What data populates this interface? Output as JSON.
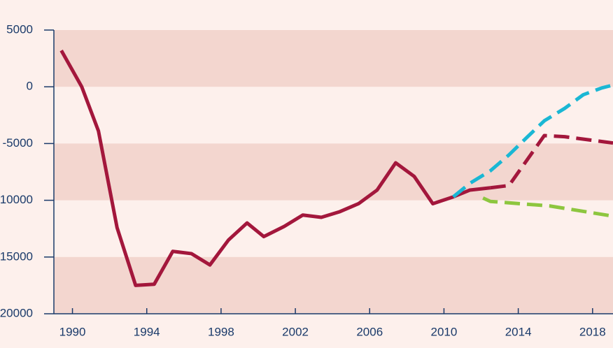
{
  "chart_data": {
    "type": "line",
    "xlim": [
      1989,
      2019.1
    ],
    "ylim": [
      -20000,
      5000
    ],
    "xticks": [
      1990,
      1994,
      1998,
      2002,
      2006,
      2010,
      2014,
      2018
    ],
    "yticks": [
      -20000,
      -15000,
      -10000,
      -5000,
      0,
      5000
    ],
    "grid": true,
    "series": [
      {
        "color": "#a3173c",
        "dashed": false,
        "x": [
          1989.4,
          1990.5,
          1991.4,
          1992.4,
          1993.4,
          1994.4,
          1995.4,
          1996.4,
          1997.4,
          1998.4,
          1999.4,
          2000.3,
          2001.4,
          2002.4,
          2003.4,
          2004.4,
          2005.4,
          2006.4,
          2007.4,
          2008.4,
          2009.4,
          2010.5,
          2011.4,
          2012.5
        ],
        "values": [
          3200,
          0,
          -3900,
          -12400,
          -17500,
          -17400,
          -14500,
          -14700,
          -15700,
          -13500,
          -12000,
          -13200,
          -12300,
          -11300,
          -11500,
          -11000,
          -10300,
          -9100,
          -6700,
          -7900,
          -10300,
          -9700,
          -9100,
          -8900
        ]
      },
      {
        "color": "#a3173c",
        "dashed": true,
        "x": [
          2012.5,
          2013.5,
          2015.4,
          2016.5,
          2019.1
        ],
        "values": [
          -8900,
          -8700,
          -4300,
          -4400,
          -4950
        ]
      },
      {
        "color": "#1ab7d4",
        "dashed": true,
        "x": [
          2010.5,
          2011.4,
          2012.5,
          2013.5,
          2014.5,
          2015.4,
          2016.5,
          2017.5,
          2018.5,
          2019.1
        ],
        "values": [
          -9700,
          -8500,
          -7400,
          -6000,
          -4400,
          -3000,
          -1900,
          -700,
          -100,
          150
        ]
      },
      {
        "color": "#8dc63f",
        "dashed": true,
        "x": [
          2012.1,
          2012.5,
          2015.7,
          2019.1
        ],
        "values": [
          -9800,
          -10100,
          -10500,
          -11400
        ]
      }
    ]
  }
}
